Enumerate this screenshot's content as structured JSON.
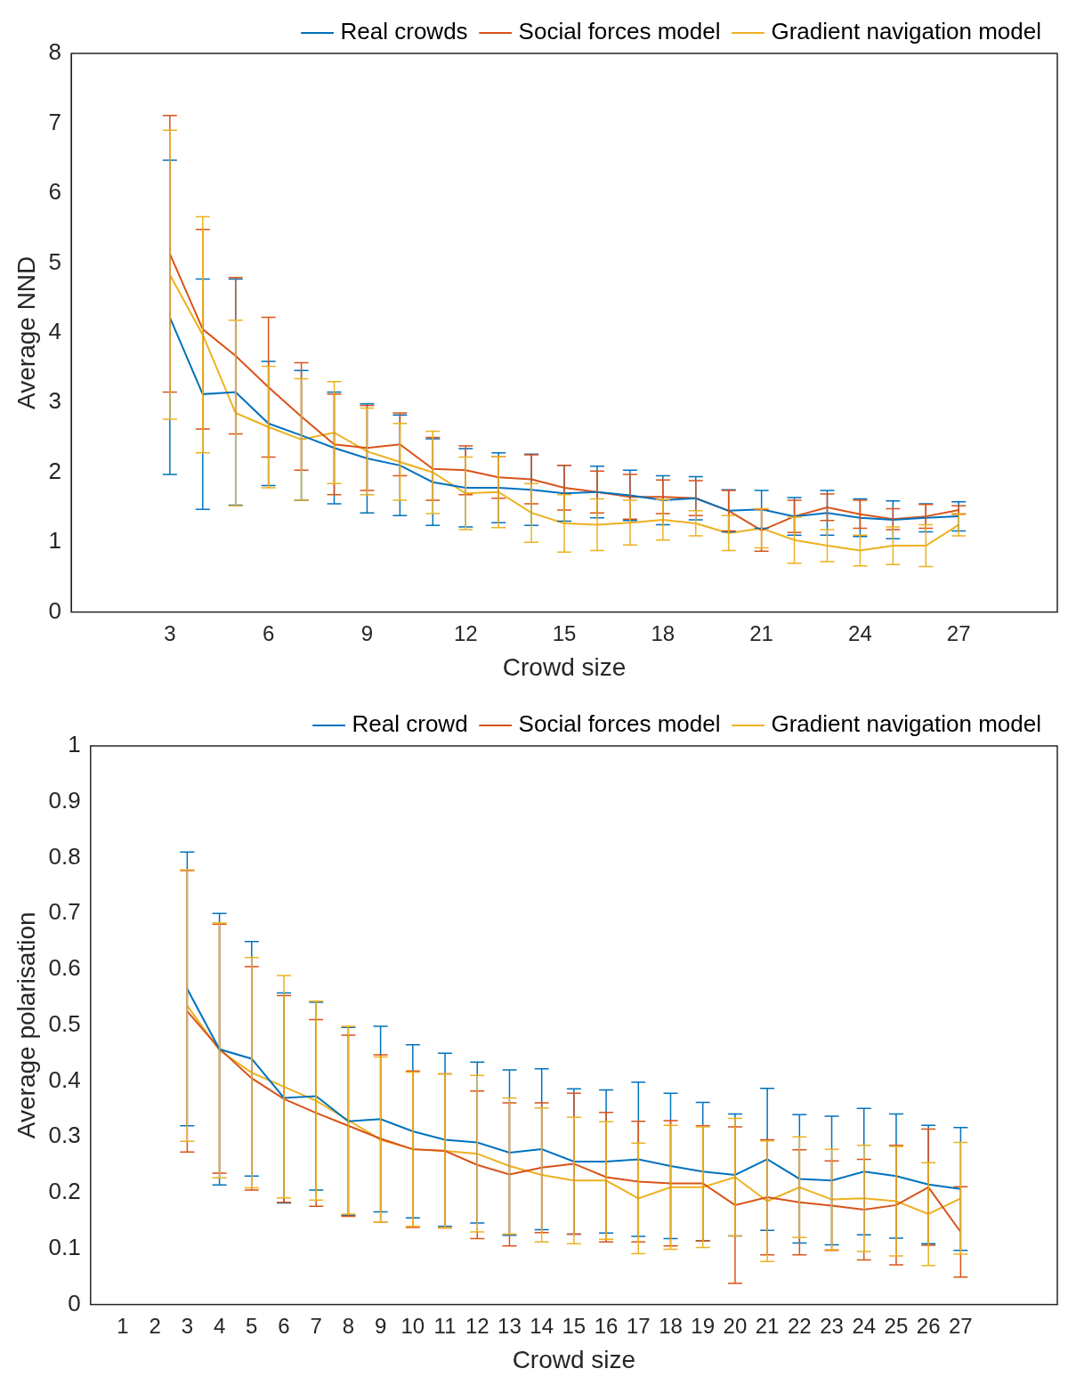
{
  "chart_data": [
    {
      "type": "line",
      "x_label": "Crowd size",
      "y_label": "Average NND",
      "xlim": [
        0,
        30
      ],
      "xticks": [
        3,
        6,
        9,
        12,
        15,
        18,
        21,
        24,
        27
      ],
      "ylim": [
        0,
        8
      ],
      "yticks": [
        0,
        1,
        2,
        3,
        4,
        5,
        6,
        7,
        8
      ],
      "grid": false,
      "legend": "top right",
      "x": [
        3,
        4,
        5,
        6,
        7,
        8,
        9,
        10,
        11,
        12,
        13,
        14,
        15,
        16,
        17,
        18,
        19,
        20,
        21,
        22,
        23,
        24,
        25,
        26,
        27
      ],
      "series": [
        {
          "name": "Real crowds",
          "color": "#0072BD",
          "values": [
            4.22,
            3.12,
            3.15,
            2.7,
            2.53,
            2.35,
            2.2,
            2.1,
            1.86,
            1.78,
            1.78,
            1.75,
            1.7,
            1.72,
            1.67,
            1.6,
            1.63,
            1.45,
            1.47,
            1.37,
            1.42,
            1.35,
            1.32,
            1.35,
            1.37
          ],
          "errors": [
            2.25,
            1.65,
            1.62,
            0.89,
            0.93,
            0.8,
            0.78,
            0.72,
            0.62,
            0.56,
            0.5,
            0.51,
            0.4,
            0.37,
            0.36,
            0.35,
            0.31,
            0.3,
            0.27,
            0.27,
            0.32,
            0.27,
            0.27,
            0.2,
            0.21
          ]
        },
        {
          "name": "Social forces model",
          "color": "#D95319",
          "values": [
            5.13,
            4.05,
            3.67,
            3.22,
            2.8,
            2.4,
            2.35,
            2.4,
            2.05,
            2.03,
            1.93,
            1.9,
            1.78,
            1.72,
            1.65,
            1.65,
            1.63,
            1.45,
            1.17,
            1.37,
            1.5,
            1.4,
            1.33,
            1.37,
            1.46
          ],
          "errors": [
            1.98,
            1.43,
            1.12,
            1.0,
            0.77,
            0.72,
            0.61,
            0.45,
            0.45,
            0.35,
            0.3,
            0.35,
            0.32,
            0.3,
            0.32,
            0.24,
            0.25,
            0.29,
            0.3,
            0.23,
            0.19,
            0.2,
            0.15,
            0.17,
            0.06
          ]
        },
        {
          "name": "Gradient navigation model",
          "color": "#EDB120",
          "values": [
            4.83,
            3.97,
            2.85,
            2.65,
            2.47,
            2.57,
            2.3,
            2.15,
            2.0,
            1.7,
            1.72,
            1.42,
            1.27,
            1.25,
            1.28,
            1.32,
            1.27,
            1.13,
            1.2,
            1.03,
            0.95,
            0.88,
            0.95,
            0.95,
            1.25
          ],
          "errors": [
            2.07,
            1.69,
            1.33,
            0.87,
            0.87,
            0.73,
            0.62,
            0.55,
            0.59,
            0.52,
            0.51,
            0.42,
            0.41,
            0.37,
            0.32,
            0.29,
            0.18,
            0.25,
            0.28,
            0.33,
            0.23,
            0.22,
            0.27,
            0.3,
            0.16
          ]
        }
      ]
    },
    {
      "type": "line",
      "x_label": "Crowd size",
      "y_label": "Average polarisation",
      "xlim": [
        0,
        30
      ],
      "xticks": [
        1,
        2,
        3,
        4,
        5,
        6,
        7,
        8,
        9,
        10,
        11,
        12,
        13,
        14,
        15,
        16,
        17,
        18,
        19,
        20,
        21,
        22,
        23,
        24,
        25,
        26,
        27
      ],
      "ylim": [
        0,
        1
      ],
      "yticks": [
        0,
        0.1,
        0.2,
        0.3,
        0.4,
        0.5,
        0.6,
        0.7,
        0.8,
        0.9,
        1
      ],
      "grid": false,
      "legend": "top right",
      "x": [
        3,
        4,
        5,
        6,
        7,
        8,
        9,
        10,
        11,
        12,
        13,
        14,
        15,
        16,
        17,
        18,
        19,
        20,
        21,
        22,
        23,
        24,
        25,
        26,
        27
      ],
      "series": [
        {
          "name": "Real crowd",
          "color": "#0072BD",
          "values": [
            0.565,
            0.457,
            0.44,
            0.37,
            0.373,
            0.328,
            0.332,
            0.31,
            0.295,
            0.29,
            0.272,
            0.278,
            0.256,
            0.256,
            0.26,
            0.248,
            0.238,
            0.232,
            0.26,
            0.225,
            0.222,
            0.238,
            0.23,
            0.215,
            0.207
          ],
          "errors": [
            0.245,
            0.243,
            0.21,
            0.188,
            0.168,
            0.168,
            0.166,
            0.155,
            0.155,
            0.144,
            0.148,
            0.144,
            0.13,
            0.128,
            0.138,
            0.13,
            0.124,
            0.109,
            0.127,
            0.115,
            0.115,
            0.113,
            0.111,
            0.106,
            0.11
          ]
        },
        {
          "name": "Social forces model",
          "color": "#D95319",
          "values": [
            0.525,
            0.458,
            0.405,
            0.368,
            0.343,
            0.32,
            0.297,
            0.278,
            0.275,
            0.25,
            0.233,
            0.245,
            0.252,
            0.228,
            0.22,
            0.217,
            0.217,
            0.178,
            0.192,
            0.183,
            0.177,
            0.17,
            0.178,
            0.21,
            0.13
          ],
          "errors": [
            0.252,
            0.223,
            0.2,
            0.185,
            0.167,
            0.162,
            0.15,
            0.14,
            0.138,
            0.132,
            0.128,
            0.116,
            0.126,
            0.116,
            0.108,
            0.112,
            0.103,
            0.14,
            0.103,
            0.094,
            0.08,
            0.09,
            0.107,
            0.104,
            0.081
          ]
        },
        {
          "name": "Gradient navigation model",
          "color": "#EDB120",
          "values": [
            0.535,
            0.455,
            0.415,
            0.39,
            0.365,
            0.33,
            0.295,
            0.278,
            0.275,
            0.27,
            0.248,
            0.232,
            0.222,
            0.222,
            0.19,
            0.21,
            0.21,
            0.228,
            0.185,
            0.21,
            0.188,
            0.19,
            0.185,
            0.162,
            0.19
          ],
          "errors": [
            0.243,
            0.228,
            0.206,
            0.199,
            0.178,
            0.168,
            0.148,
            0.138,
            0.138,
            0.14,
            0.122,
            0.12,
            0.113,
            0.105,
            0.099,
            0.111,
            0.108,
            0.105,
            0.108,
            0.09,
            0.09,
            0.095,
            0.098,
            0.092,
            0.1
          ]
        }
      ]
    }
  ]
}
